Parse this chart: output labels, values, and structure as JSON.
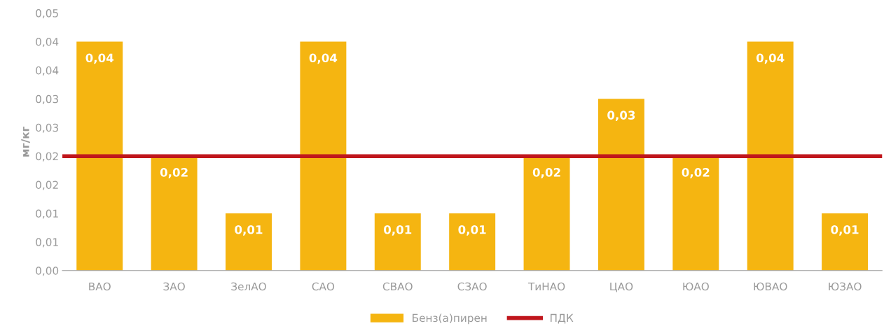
{
  "chart_data": {
    "type": "bar",
    "ylabel": "мг/кг",
    "categories": [
      "ВАО",
      "ЗАО",
      "ЗелАО",
      "САО",
      "СВАО",
      "СЗАО",
      "ТиНАО",
      "ЦАО",
      "ЮАО",
      "ЮВАО",
      "ЮЗАО"
    ],
    "series": [
      {
        "name": "Бенз(а)пирен",
        "color": "#f5b511",
        "values": [
          0.04,
          0.02,
          0.01,
          0.04,
          0.01,
          0.01,
          0.02,
          0.03,
          0.02,
          0.04,
          0.01
        ],
        "value_labels": [
          "0,04",
          "0,02",
          "0,01",
          "0,04",
          "0,01",
          "0,01",
          "0,02",
          "0,03",
          "0,02",
          "0,04",
          "0,01"
        ]
      }
    ],
    "ref_lines": [
      {
        "axis": "y",
        "value": 0.02,
        "label": "ПДК",
        "color": "#c0161c",
        "line_style": "solid"
      }
    ],
    "ylim": [
      0,
      0.045
    ],
    "yticks": [
      {
        "value": 0,
        "label": "0,00"
      },
      {
        "value": 0.005,
        "label": "0,01"
      },
      {
        "value": 0.01,
        "label": "0,01"
      },
      {
        "value": 0.015,
        "label": "0,02"
      },
      {
        "value": 0.02,
        "label": "0,02"
      },
      {
        "value": 0.025,
        "label": "0,03"
      },
      {
        "value": 0.03,
        "label": "0,03"
      },
      {
        "value": 0.035,
        "label": "0,04"
      },
      {
        "value": 0.04,
        "label": "0,04"
      },
      {
        "value": 0.045,
        "label": "0,05"
      }
    ],
    "grid": false,
    "legend": "bottom"
  }
}
